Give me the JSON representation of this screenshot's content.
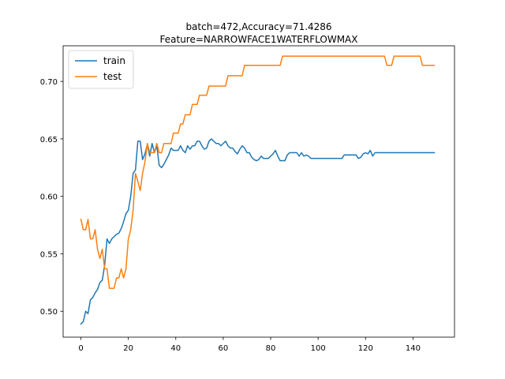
{
  "chart_data": {
    "type": "line",
    "title_line1": "batch=472,Accuracy=71.4286",
    "title_line2": "Feature=NARROWFACE1WATERFLOWMAX",
    "xlabel": "",
    "ylabel": "",
    "xlim": [
      -7.5,
      157.5
    ],
    "ylim": [
      0.4775,
      0.731
    ],
    "xticks": [
      0,
      20,
      40,
      60,
      80,
      100,
      120,
      140
    ],
    "yticks": [
      0.5,
      0.55,
      0.6,
      0.65,
      0.7
    ],
    "ytick_labels": [
      "0.50",
      "0.55",
      "0.60",
      "0.65",
      "0.70"
    ],
    "grid": false,
    "legend_position": "upper-left",
    "series": [
      {
        "name": "train",
        "color": "#1f77b4",
        "points": [
          [
            0,
            0.489
          ],
          [
            1,
            0.491
          ],
          [
            2,
            0.5
          ],
          [
            3,
            0.498
          ],
          [
            4,
            0.51
          ],
          [
            5,
            0.512
          ],
          [
            6,
            0.516
          ],
          [
            7,
            0.519
          ],
          [
            8,
            0.525
          ],
          [
            9,
            0.527
          ],
          [
            10,
            0.54
          ],
          [
            11,
            0.563
          ],
          [
            12,
            0.559
          ],
          [
            13,
            0.563
          ],
          [
            14,
            0.565
          ],
          [
            15,
            0.567
          ],
          [
            16,
            0.568
          ],
          [
            17,
            0.572
          ],
          [
            18,
            0.578
          ],
          [
            19,
            0.585
          ],
          [
            20,
            0.588
          ],
          [
            21,
            0.6
          ],
          [
            22,
            0.62
          ],
          [
            23,
            0.623
          ],
          [
            24,
            0.648
          ],
          [
            25,
            0.648
          ],
          [
            26,
            0.632
          ],
          [
            27,
            0.637
          ],
          [
            28,
            0.645
          ],
          [
            29,
            0.635
          ],
          [
            30,
            0.646
          ],
          [
            31,
            0.638
          ],
          [
            32,
            0.644
          ],
          [
            33,
            0.627
          ],
          [
            34,
            0.625
          ],
          [
            35,
            0.628
          ],
          [
            36,
            0.632
          ],
          [
            37,
            0.636
          ],
          [
            38,
            0.642
          ],
          [
            39,
            0.64
          ],
          [
            40,
            0.64
          ],
          [
            41,
            0.64
          ],
          [
            42,
            0.644
          ],
          [
            43,
            0.64
          ],
          [
            44,
            0.638
          ],
          [
            45,
            0.644
          ],
          [
            46,
            0.641
          ],
          [
            47,
            0.644
          ],
          [
            48,
            0.644
          ],
          [
            49,
            0.648
          ],
          [
            50,
            0.648
          ],
          [
            51,
            0.644
          ],
          [
            52,
            0.641
          ],
          [
            53,
            0.642
          ],
          [
            54,
            0.648
          ],
          [
            55,
            0.65
          ],
          [
            56,
            0.648
          ],
          [
            57,
            0.646
          ],
          [
            58,
            0.646
          ],
          [
            59,
            0.644
          ],
          [
            60,
            0.646
          ],
          [
            61,
            0.648
          ],
          [
            62,
            0.644
          ],
          [
            63,
            0.642
          ],
          [
            64,
            0.642
          ],
          [
            65,
            0.639
          ],
          [
            66,
            0.637
          ],
          [
            67,
            0.641
          ],
          [
            68,
            0.644
          ],
          [
            69,
            0.642
          ],
          [
            70,
            0.638
          ],
          [
            71,
            0.638
          ],
          [
            72,
            0.634
          ],
          [
            73,
            0.632
          ],
          [
            74,
            0.631
          ],
          [
            75,
            0.632
          ],
          [
            76,
            0.635
          ],
          [
            77,
            0.633
          ],
          [
            78,
            0.633
          ],
          [
            79,
            0.633
          ],
          [
            80,
            0.635
          ],
          [
            81,
            0.637
          ],
          [
            82,
            0.64
          ],
          [
            83,
            0.635
          ],
          [
            84,
            0.631
          ],
          [
            85,
            0.631
          ],
          [
            86,
            0.631
          ],
          [
            87,
            0.636
          ],
          [
            88,
            0.638
          ],
          [
            89,
            0.638
          ],
          [
            90,
            0.638
          ],
          [
            91,
            0.638
          ],
          [
            92,
            0.635
          ],
          [
            93,
            0.638
          ],
          [
            94,
            0.635
          ],
          [
            95,
            0.636
          ],
          [
            96,
            0.635
          ],
          [
            97,
            0.633
          ],
          [
            98,
            0.633
          ],
          [
            99,
            0.633
          ],
          [
            100,
            0.633
          ],
          [
            101,
            0.633
          ],
          [
            102,
            0.633
          ],
          [
            103,
            0.633
          ],
          [
            104,
            0.633
          ],
          [
            105,
            0.633
          ],
          [
            106,
            0.633
          ],
          [
            107,
            0.633
          ],
          [
            108,
            0.633
          ],
          [
            109,
            0.633
          ],
          [
            110,
            0.633
          ],
          [
            111,
            0.636
          ],
          [
            112,
            0.636
          ],
          [
            113,
            0.636
          ],
          [
            114,
            0.636
          ],
          [
            115,
            0.636
          ],
          [
            116,
            0.636
          ],
          [
            117,
            0.633
          ],
          [
            118,
            0.634
          ],
          [
            119,
            0.637
          ],
          [
            120,
            0.638
          ],
          [
            121,
            0.637
          ],
          [
            122,
            0.64
          ],
          [
            123,
            0.635
          ],
          [
            124,
            0.638
          ],
          [
            125,
            0.638
          ],
          [
            126,
            0.638
          ],
          [
            127,
            0.638
          ],
          [
            128,
            0.638
          ],
          [
            129,
            0.638
          ],
          [
            130,
            0.638
          ],
          [
            131,
            0.638
          ],
          [
            132,
            0.638
          ],
          [
            133,
            0.638
          ],
          [
            134,
            0.638
          ],
          [
            135,
            0.638
          ],
          [
            136,
            0.638
          ],
          [
            137,
            0.638
          ],
          [
            138,
            0.638
          ],
          [
            139,
            0.638
          ],
          [
            140,
            0.638
          ],
          [
            141,
            0.638
          ],
          [
            142,
            0.638
          ],
          [
            143,
            0.638
          ],
          [
            144,
            0.638
          ],
          [
            145,
            0.638
          ],
          [
            146,
            0.638
          ],
          [
            147,
            0.638
          ],
          [
            148,
            0.638
          ],
          [
            149,
            0.638
          ]
        ]
      },
      {
        "name": "test",
        "color": "#ff7f0e",
        "points": [
          [
            0,
            0.58
          ],
          [
            1,
            0.571
          ],
          [
            2,
            0.571
          ],
          [
            3,
            0.58
          ],
          [
            4,
            0.563
          ],
          [
            5,
            0.563
          ],
          [
            6,
            0.571
          ],
          [
            7,
            0.554
          ],
          [
            8,
            0.546
          ],
          [
            9,
            0.554
          ],
          [
            10,
            0.537
          ],
          [
            11,
            0.537
          ],
          [
            12,
            0.52
          ],
          [
            13,
            0.52
          ],
          [
            14,
            0.52
          ],
          [
            15,
            0.529
          ],
          [
            16,
            0.529
          ],
          [
            17,
            0.537
          ],
          [
            18,
            0.529
          ],
          [
            19,
            0.537
          ],
          [
            20,
            0.563
          ],
          [
            21,
            0.571
          ],
          [
            22,
            0.588
          ],
          [
            23,
            0.62
          ],
          [
            24,
            0.613
          ],
          [
            25,
            0.605
          ],
          [
            26,
            0.62
          ],
          [
            27,
            0.63
          ],
          [
            28,
            0.646
          ],
          [
            29,
            0.638
          ],
          [
            30,
            0.638
          ],
          [
            31,
            0.638
          ],
          [
            32,
            0.646
          ],
          [
            33,
            0.638
          ],
          [
            34,
            0.638
          ],
          [
            35,
            0.646
          ],
          [
            36,
            0.646
          ],
          [
            37,
            0.646
          ],
          [
            38,
            0.646
          ],
          [
            39,
            0.655
          ],
          [
            40,
            0.655
          ],
          [
            41,
            0.655
          ],
          [
            42,
            0.663
          ],
          [
            43,
            0.663
          ],
          [
            44,
            0.671
          ],
          [
            45,
            0.671
          ],
          [
            46,
            0.671
          ],
          [
            47,
            0.68
          ],
          [
            48,
            0.68
          ],
          [
            49,
            0.68
          ],
          [
            50,
            0.688
          ],
          [
            51,
            0.688
          ],
          [
            52,
            0.688
          ],
          [
            53,
            0.688
          ],
          [
            54,
            0.696
          ],
          [
            55,
            0.696
          ],
          [
            56,
            0.696
          ],
          [
            57,
            0.696
          ],
          [
            58,
            0.696
          ],
          [
            59,
            0.696
          ],
          [
            60,
            0.696
          ],
          [
            61,
            0.696
          ],
          [
            62,
            0.705
          ],
          [
            63,
            0.705
          ],
          [
            64,
            0.705
          ],
          [
            65,
            0.705
          ],
          [
            66,
            0.705
          ],
          [
            67,
            0.705
          ],
          [
            68,
            0.705
          ],
          [
            69,
            0.714
          ],
          [
            70,
            0.714
          ],
          [
            71,
            0.714
          ],
          [
            72,
            0.714
          ],
          [
            73,
            0.714
          ],
          [
            74,
            0.714
          ],
          [
            75,
            0.714
          ],
          [
            76,
            0.714
          ],
          [
            77,
            0.714
          ],
          [
            78,
            0.714
          ],
          [
            79,
            0.714
          ],
          [
            80,
            0.714
          ],
          [
            81,
            0.714
          ],
          [
            82,
            0.714
          ],
          [
            83,
            0.714
          ],
          [
            84,
            0.714
          ],
          [
            85,
            0.722
          ],
          [
            86,
            0.722
          ],
          [
            87,
            0.722
          ],
          [
            88,
            0.722
          ],
          [
            89,
            0.722
          ],
          [
            90,
            0.722
          ],
          [
            91,
            0.722
          ],
          [
            92,
            0.722
          ],
          [
            93,
            0.722
          ],
          [
            94,
            0.722
          ],
          [
            95,
            0.722
          ],
          [
            96,
            0.722
          ],
          [
            97,
            0.722
          ],
          [
            98,
            0.722
          ],
          [
            99,
            0.722
          ],
          [
            100,
            0.722
          ],
          [
            101,
            0.722
          ],
          [
            102,
            0.722
          ],
          [
            103,
            0.722
          ],
          [
            104,
            0.722
          ],
          [
            105,
            0.722
          ],
          [
            106,
            0.722
          ],
          [
            107,
            0.722
          ],
          [
            108,
            0.722
          ],
          [
            109,
            0.722
          ],
          [
            110,
            0.722
          ],
          [
            111,
            0.722
          ],
          [
            112,
            0.722
          ],
          [
            113,
            0.722
          ],
          [
            114,
            0.722
          ],
          [
            115,
            0.722
          ],
          [
            116,
            0.722
          ],
          [
            117,
            0.722
          ],
          [
            118,
            0.722
          ],
          [
            119,
            0.722
          ],
          [
            120,
            0.722
          ],
          [
            121,
            0.722
          ],
          [
            122,
            0.722
          ],
          [
            123,
            0.722
          ],
          [
            124,
            0.722
          ],
          [
            125,
            0.722
          ],
          [
            126,
            0.722
          ],
          [
            127,
            0.722
          ],
          [
            128,
            0.722
          ],
          [
            129,
            0.714
          ],
          [
            130,
            0.714
          ],
          [
            131,
            0.714
          ],
          [
            132,
            0.722
          ],
          [
            133,
            0.722
          ],
          [
            134,
            0.722
          ],
          [
            135,
            0.722
          ],
          [
            136,
            0.722
          ],
          [
            137,
            0.722
          ],
          [
            138,
            0.722
          ],
          [
            139,
            0.722
          ],
          [
            140,
            0.722
          ],
          [
            141,
            0.722
          ],
          [
            142,
            0.722
          ],
          [
            143,
            0.722
          ],
          [
            144,
            0.714
          ],
          [
            145,
            0.714
          ],
          [
            146,
            0.714
          ],
          [
            147,
            0.714
          ],
          [
            148,
            0.714
          ],
          [
            149,
            0.714
          ]
        ]
      }
    ]
  }
}
